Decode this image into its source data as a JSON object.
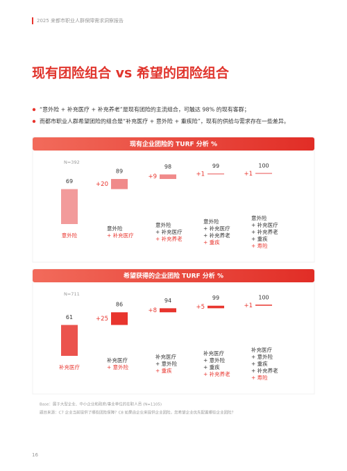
{
  "header": "2025 来都市职业人群保障需求洞察报告",
  "title": "现有团险组合 vs 希望的团险组合",
  "bullets": [
    "“意外险 + 补充医疗 + 补充养老”是现有团险的主流组合，可触达 98% 的现有客群；",
    "而都市职业人群希望团险的组合是“补充医疗 + 意外险 + 重疾险”，现有的供给与需求存在一些差异。"
  ],
  "chart_data": [
    {
      "type": "waterfall",
      "title": "现有企业团险的 TURF 分析 %",
      "sample": "N=392",
      "color": "#f08a8a",
      "categories": [
        [
          "意外险"
        ],
        [
          "意外险",
          "+ 补充医疗"
        ],
        [
          "意外险",
          "+ 补充医疗",
          "+ 补充养老"
        ],
        [
          "意外险",
          "+ 补充医疗",
          "+ 补充养老",
          "+ 重疾"
        ],
        [
          "意外险",
          "+ 补充医疗",
          "+ 补充养老",
          "+ 重疾",
          "+ 寿险"
        ]
      ],
      "values": [
        69,
        20,
        9,
        1,
        1
      ],
      "value_labels": [
        null,
        "+20",
        "+9",
        "+1",
        "+1"
      ],
      "totals": [
        69,
        89,
        98,
        99,
        100
      ]
    },
    {
      "type": "waterfall",
      "title": "希望获得的企业团险 TURF 分析 %",
      "sample": "N=711",
      "color": "#e8352e",
      "categories": [
        [
          "补充医疗"
        ],
        [
          "补充医疗",
          "+ 意外险"
        ],
        [
          "补充医疗",
          "+ 意外险",
          "+ 重疾"
        ],
        [
          "补充医疗",
          "+ 意外险",
          "+ 重疾",
          "+ 补充养老"
        ],
        [
          "补充医疗",
          "+ 意外险",
          "+ 重疾",
          "+ 补充养老",
          "+ 寿险"
        ]
      ],
      "values": [
        61,
        25,
        8,
        5,
        1
      ],
      "value_labels": [
        null,
        "+25",
        "+8",
        "+5",
        "+1"
      ],
      "totals": [
        61,
        86,
        94,
        99,
        100
      ]
    }
  ],
  "notes": [
    "Base：属于大型企业、中小企业和政府/事业单位的在职人员 (N=1105)",
    "题目来源：C7 企业当前提供了哪些团险保障？C8 如果由企业来提供企业团险，您希望企业优先配置哪些企业团险？"
  ],
  "page_number": "16"
}
